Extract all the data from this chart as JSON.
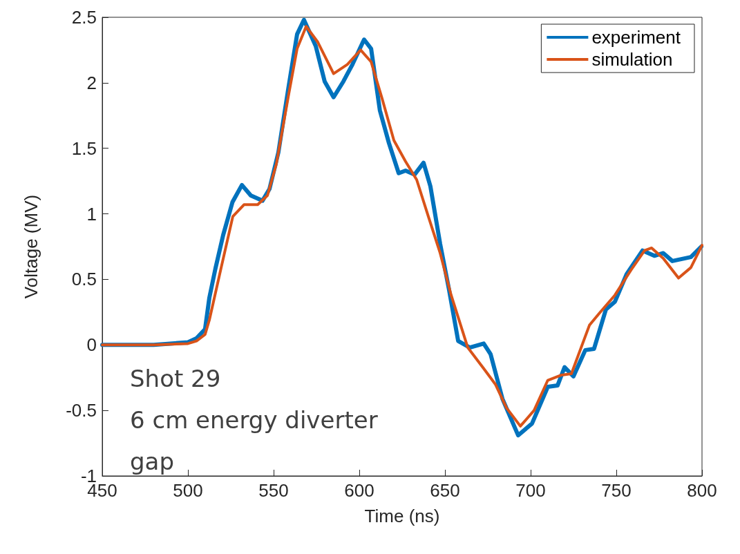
{
  "chart_data": {
    "type": "line",
    "xlabel": "Time (ns)",
    "ylabel": "Voltage (MV)",
    "xlim": [
      450,
      800
    ],
    "xticks": [
      450,
      500,
      550,
      600,
      650,
      700,
      750,
      800
    ],
    "ylim": [
      -1,
      2.5
    ],
    "yticks": [
      -1,
      -0.5,
      0,
      0.5,
      1,
      1.5,
      2,
      2.5
    ],
    "grid": false,
    "legend": "top right",
    "marker": "none",
    "line_style": "solid",
    "annotations": [
      "Shot 29\n6 cm energy diverter\ngap"
    ],
    "series": [
      {
        "name": "experiment",
        "color": "#0072bd",
        "x": [
          450,
          480,
          500,
          505,
          510,
          512.5,
          516,
          520.6,
          526,
          531.5,
          536.7,
          543.5,
          547.6,
          552.8,
          558.5,
          563.7,
          567.7,
          574.6,
          579.8,
          585,
          590.7,
          596,
          602.8,
          606.9,
          612,
          617.3,
          623,
          627,
          632.3,
          637.5,
          641.5,
          647.2,
          652.4,
          657.7,
          664.5,
          672.6,
          676.6,
          683.5,
          692.7,
          700.8,
          710,
          715.7,
          719.8,
          725,
          731.9,
          737,
          743.9,
          749.2,
          756,
          765.3,
          772.2,
          777.4,
          782.7,
          793.5,
          799.6
        ],
        "values": [
          0,
          0,
          0.02,
          0.05,
          0.12,
          0.36,
          0.58,
          0.84,
          1.09,
          1.22,
          1.14,
          1.1,
          1.19,
          1.47,
          1.95,
          2.37,
          2.48,
          2.28,
          2.01,
          1.89,
          2.01,
          2.14,
          2.33,
          2.26,
          1.79,
          1.54,
          1.31,
          1.33,
          1.3,
          1.39,
          1.21,
          0.77,
          0.42,
          0.03,
          -0.02,
          0.01,
          -0.07,
          -0.41,
          -0.69,
          -0.6,
          -0.32,
          -0.31,
          -0.17,
          -0.24,
          -0.04,
          -0.03,
          0.27,
          0.33,
          0.54,
          0.72,
          0.68,
          0.7,
          0.64,
          0.67,
          0.75
        ]
      },
      {
        "name": "simulation",
        "color": "#d95319",
        "x": [
          450,
          480,
          500,
          505,
          510,
          512.5,
          519.4,
          526.2,
          532.7,
          540.7,
          546.4,
          551.6,
          558.5,
          563.7,
          569,
          575.8,
          585,
          593,
          600.8,
          606.9,
          613.3,
          620.2,
          627,
          633.5,
          640.3,
          647.2,
          653.6,
          663.3,
          672.6,
          679.4,
          685.9,
          694,
          702,
          710,
          718,
          723.8,
          734.3,
          740,
          749.2,
          758.5,
          766.5,
          770.6,
          777.4,
          786.3,
          793.5,
          800
        ],
        "values": [
          0,
          0,
          0.01,
          0.03,
          0.08,
          0.19,
          0.59,
          0.98,
          1.07,
          1.07,
          1.14,
          1.38,
          1.89,
          2.26,
          2.43,
          2.31,
          2.07,
          2.14,
          2.25,
          2.16,
          1.88,
          1.56,
          1.4,
          1.26,
          0.98,
          0.7,
          0.38,
          -0.02,
          -0.18,
          -0.3,
          -0.48,
          -0.62,
          -0.5,
          -0.27,
          -0.23,
          -0.22,
          0.15,
          0.24,
          0.38,
          0.57,
          0.72,
          0.74,
          0.66,
          0.51,
          0.59,
          0.76
        ]
      }
    ]
  }
}
